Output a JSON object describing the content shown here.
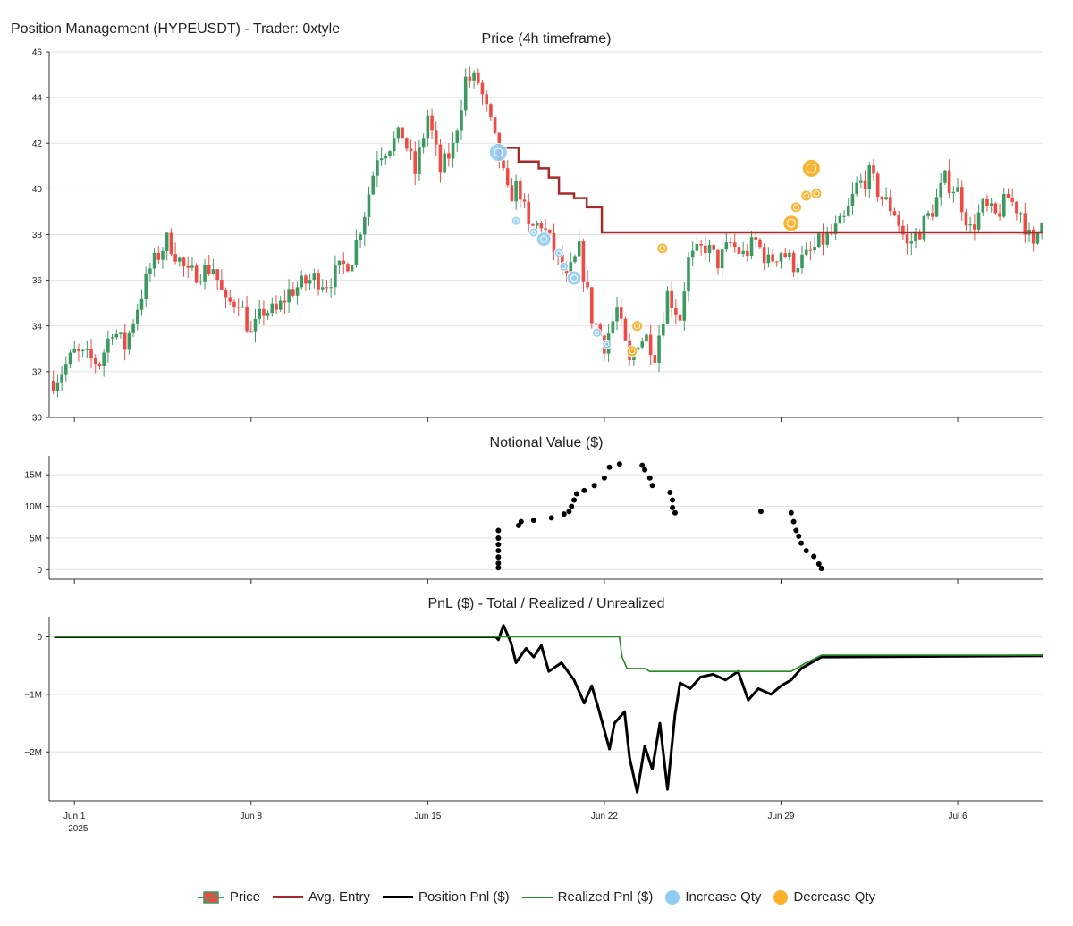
{
  "figure_title": "Position Management (HYPEUSDT) - Trader: 0xtyle",
  "colors": {
    "up": "#3c9a61",
    "down": "#ef4b44",
    "avg_entry": "#a52a2a",
    "position_pnl": "#000000",
    "realized_pnl": "#1e8c1e",
    "increase": "#8fcdf3",
    "decrease": "#f9b02a"
  },
  "legend": [
    {
      "key": "price",
      "label": "Price"
    },
    {
      "key": "avg",
      "label": "Avg. Entry"
    },
    {
      "key": "pos",
      "label": "Position Pnl ($)"
    },
    {
      "key": "real",
      "label": "Realized Pnl ($)"
    },
    {
      "key": "inc",
      "label": "Increase Qty"
    },
    {
      "key": "dec",
      "label": "Decrease Qty"
    }
  ],
  "chart_data": [
    {
      "type": "candlestick",
      "title": "Price (4h timeframe)",
      "timeframe": "4h",
      "ylim": [
        30,
        46
      ],
      "yticks": [
        30,
        32,
        34,
        36,
        38,
        40,
        42,
        44,
        46
      ],
      "xlim_days": [
        0,
        39.4
      ],
      "xticks": [
        {
          "day": 1,
          "label": "Jun 1",
          "sub": "2025"
        },
        {
          "day": 8,
          "label": "Jun 8"
        },
        {
          "day": 15,
          "label": "Jun 15"
        },
        {
          "day": 22,
          "label": "Jun 22"
        },
        {
          "day": 29,
          "label": "Jun 29"
        },
        {
          "day": 36,
          "label": "Jul 6"
        }
      ],
      "close_path": [
        [
          0.2,
          31.6
        ],
        [
          1,
          32.8
        ],
        [
          2,
          32.4
        ],
        [
          2.5,
          33.9
        ],
        [
          3,
          33.1
        ],
        [
          3.3,
          34.2
        ],
        [
          4,
          36.5
        ],
        [
          4.7,
          37.8
        ],
        [
          5.5,
          36.2
        ],
        [
          6.5,
          36.6
        ],
        [
          7,
          34.9
        ],
        [
          7.5,
          35.2
        ],
        [
          8,
          33.6
        ],
        [
          8.5,
          34.7
        ],
        [
          9,
          34.6
        ],
        [
          9.5,
          35.5
        ],
        [
          10,
          35.8
        ],
        [
          10.5,
          36.1
        ],
        [
          11,
          35.9
        ],
        [
          12,
          37.0
        ],
        [
          12.5,
          39.0
        ],
        [
          13,
          41.5
        ],
        [
          14,
          42.4
        ],
        [
          14.5,
          40.7
        ],
        [
          15,
          43.2
        ],
        [
          15.5,
          40.8
        ],
        [
          16,
          41.8
        ],
        [
          16.5,
          44.8
        ],
        [
          17,
          44.7
        ],
        [
          17.5,
          42.8
        ],
        [
          17.8,
          41.5
        ],
        [
          18.2,
          39.6
        ],
        [
          18.6,
          40.2
        ],
        [
          19,
          38.2
        ],
        [
          19.5,
          38.5
        ],
        [
          20,
          37.3
        ],
        [
          20.5,
          36.0
        ],
        [
          21,
          37.3
        ],
        [
          21.5,
          34.4
        ],
        [
          22,
          33.2
        ],
        [
          22.5,
          34.7
        ],
        [
          23,
          32.3
        ],
        [
          23.3,
          33.4
        ],
        [
          23.7,
          33.5
        ],
        [
          24,
          32.8
        ],
        [
          24.5,
          35.4
        ],
        [
          25,
          34.4
        ],
        [
          25.3,
          36.8
        ],
        [
          26,
          37.5
        ],
        [
          26.5,
          36.8
        ],
        [
          27,
          37.6
        ],
        [
          27.5,
          37.1
        ],
        [
          28,
          37.7
        ],
        [
          28.5,
          36.8
        ],
        [
          29,
          37.3
        ],
        [
          29.5,
          36.7
        ],
        [
          30,
          37.0
        ],
        [
          30.5,
          37.6
        ],
        [
          31,
          38.0
        ],
        [
          31.5,
          38.6
        ],
        [
          32,
          40.1
        ],
        [
          32.5,
          40.6
        ],
        [
          33,
          39.6
        ],
        [
          33.5,
          39.0
        ],
        [
          34,
          37.5
        ],
        [
          34.5,
          38.2
        ],
        [
          35,
          39.1
        ],
        [
          35.5,
          40.4
        ],
        [
          36,
          39.9
        ],
        [
          36.5,
          38.2
        ],
        [
          37,
          39.2
        ],
        [
          37.5,
          38.8
        ],
        [
          38,
          39.6
        ],
        [
          38.5,
          39.0
        ],
        [
          39,
          37.3
        ],
        [
          39.4,
          39.2
        ]
      ],
      "avg_entry_steps": [
        [
          17.8,
          41.8
        ],
        [
          18.6,
          41.2
        ],
        [
          19.4,
          40.9
        ],
        [
          19.8,
          40.5
        ],
        [
          20.2,
          39.8
        ],
        [
          20.8,
          39.6
        ],
        [
          21.3,
          39.2
        ],
        [
          21.9,
          38.1
        ],
        [
          39.4,
          38.1
        ]
      ],
      "increase_qty": [
        {
          "day": 17.8,
          "price": 41.6
        },
        {
          "day": 18.5,
          "price": 38.6
        },
        {
          "day": 19.2,
          "price": 38.1
        },
        {
          "day": 19.6,
          "price": 37.8
        },
        {
          "day": 20.2,
          "price": 37.2
        },
        {
          "day": 20.4,
          "price": 36.6
        },
        {
          "day": 20.8,
          "price": 36.1
        },
        {
          "day": 21.7,
          "price": 33.7
        },
        {
          "day": 22.1,
          "price": 33.2
        }
      ],
      "decrease_qty": [
        {
          "day": 23.1,
          "price": 32.9
        },
        {
          "day": 23.3,
          "price": 34.0
        },
        {
          "day": 24.3,
          "price": 37.4
        },
        {
          "day": 29.4,
          "price": 38.5
        },
        {
          "day": 29.6,
          "price": 39.2
        },
        {
          "day": 30.0,
          "price": 39.7
        },
        {
          "day": 30.2,
          "price": 40.9
        },
        {
          "day": 30.4,
          "price": 39.8
        }
      ]
    },
    {
      "type": "scatter",
      "title": "Notional Value ($)",
      "ylim": [
        -1500000,
        18000000
      ],
      "yticks": [
        {
          "v": 0,
          "label": "0"
        },
        {
          "v": 5000000,
          "label": "5M"
        },
        {
          "v": 10000000,
          "label": "10M"
        },
        {
          "v": 15000000,
          "label": "15M"
        }
      ],
      "points": [
        [
          17.8,
          300000
        ],
        [
          17.8,
          1000000
        ],
        [
          17.8,
          2000000
        ],
        [
          17.8,
          3000000
        ],
        [
          17.8,
          4000000
        ],
        [
          17.8,
          5000000
        ],
        [
          17.8,
          6200000
        ],
        [
          18.6,
          7000000
        ],
        [
          18.7,
          7600000
        ],
        [
          19.2,
          7800000
        ],
        [
          19.9,
          8200000
        ],
        [
          20.4,
          8800000
        ],
        [
          20.6,
          9200000
        ],
        [
          20.7,
          10000000
        ],
        [
          20.8,
          11000000
        ],
        [
          20.9,
          12000000
        ],
        [
          21.2,
          12500000
        ],
        [
          21.6,
          13300000
        ],
        [
          22.0,
          14500000
        ],
        [
          22.2,
          16200000
        ],
        [
          22.6,
          16700000
        ],
        [
          23.5,
          16500000
        ],
        [
          23.6,
          15800000
        ],
        [
          23.8,
          14500000
        ],
        [
          23.9,
          13300000
        ],
        [
          24.6,
          12200000
        ],
        [
          24.7,
          11000000
        ],
        [
          24.7,
          9800000
        ],
        [
          24.8,
          9000000
        ],
        [
          28.2,
          9200000
        ],
        [
          29.4,
          9000000
        ],
        [
          29.5,
          7600000
        ],
        [
          29.6,
          6200000
        ],
        [
          29.7,
          5300000
        ],
        [
          29.8,
          4200000
        ],
        [
          30.0,
          3000000
        ],
        [
          30.3,
          2100000
        ],
        [
          30.5,
          900000
        ],
        [
          30.6,
          200000
        ]
      ]
    },
    {
      "type": "line",
      "title": "PnL ($) - Total / Realized / Unrealized",
      "ylim": [
        -2850000,
        350000
      ],
      "yticks": [
        {
          "v": 0,
          "label": "0"
        },
        {
          "v": -1000000,
          "label": "−1M"
        },
        {
          "v": -2000000,
          "label": "−2M"
        }
      ],
      "series": [
        {
          "key": "pos",
          "points": [
            [
              0.2,
              0
            ],
            [
              17.7,
              0
            ],
            [
              17.8,
              -50000
            ],
            [
              18.0,
              200000
            ],
            [
              18.3,
              -100000
            ],
            [
              18.5,
              -450000
            ],
            [
              18.9,
              -200000
            ],
            [
              19.2,
              -350000
            ],
            [
              19.5,
              -150000
            ],
            [
              19.8,
              -600000
            ],
            [
              20.3,
              -450000
            ],
            [
              20.8,
              -750000
            ],
            [
              21.2,
              -1150000
            ],
            [
              21.5,
              -850000
            ],
            [
              21.8,
              -1300000
            ],
            [
              22.2,
              -1950000
            ],
            [
              22.4,
              -1500000
            ],
            [
              22.8,
              -1300000
            ],
            [
              23.0,
              -2100000
            ],
            [
              23.3,
              -2700000
            ],
            [
              23.6,
              -1900000
            ],
            [
              23.9,
              -2300000
            ],
            [
              24.2,
              -1500000
            ],
            [
              24.5,
              -2650000
            ],
            [
              24.8,
              -1350000
            ],
            [
              25.0,
              -800000
            ],
            [
              25.4,
              -900000
            ],
            [
              25.8,
              -700000
            ],
            [
              26.3,
              -650000
            ],
            [
              26.8,
              -750000
            ],
            [
              27.3,
              -600000
            ],
            [
              27.7,
              -1100000
            ],
            [
              28.1,
              -900000
            ],
            [
              28.6,
              -1000000
            ],
            [
              29.0,
              -850000
            ],
            [
              29.4,
              -750000
            ],
            [
              29.8,
              -550000
            ],
            [
              30.2,
              -450000
            ],
            [
              30.6,
              -350000
            ],
            [
              39.4,
              -330000
            ]
          ]
        },
        {
          "key": "real",
          "points": [
            [
              0.2,
              0
            ],
            [
              22.6,
              0
            ],
            [
              22.7,
              -350000
            ],
            [
              22.9,
              -550000
            ],
            [
              23.6,
              -550000
            ],
            [
              23.8,
              -600000
            ],
            [
              29.4,
              -600000
            ],
            [
              30.0,
              -450000
            ],
            [
              30.6,
              -320000
            ],
            [
              39.4,
              -320000
            ]
          ]
        }
      ]
    }
  ]
}
